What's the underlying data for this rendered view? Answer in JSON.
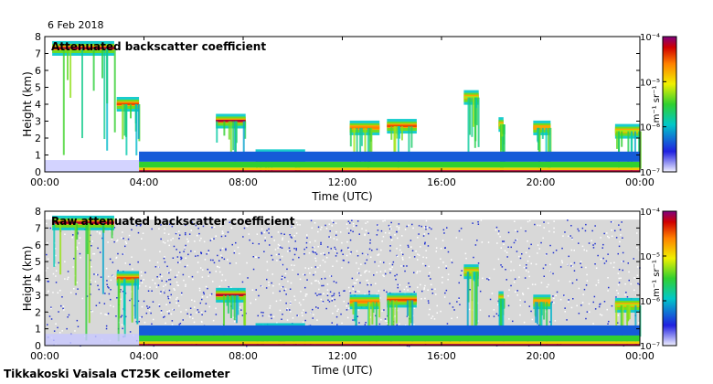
{
  "date_label": "6 Feb 2018",
  "footer": "Tikkakoski Vaisala CT25K ceilometer",
  "colorbar_unit": "m⁻¹ sr⁻¹",
  "chart_data": [
    {
      "type": "heatmap",
      "title": "Attenuated backscatter coefficient",
      "xlabel": "Time (UTC)",
      "ylabel": "Height (km)",
      "xlim_hours": [
        0,
        24
      ],
      "ylim_km": [
        0,
        8
      ],
      "xticks": [
        "00:00",
        "04:00",
        "08:00",
        "12:00",
        "16:00",
        "20:00",
        "00:00"
      ],
      "yticks": [
        0,
        1,
        2,
        3,
        4,
        5,
        6,
        7,
        8
      ],
      "colorbar": {
        "scale": "log",
        "range": [
          1e-07,
          0.0001
        ],
        "ticks": [
          "10⁻⁷",
          "10⁻⁶",
          "10⁻⁵",
          "10⁻⁴"
        ]
      },
      "noise_background": false,
      "features": [
        {
          "kind": "cloud_layer",
          "t_start": 0.3,
          "t_end": 2.8,
          "h_km": 7.3,
          "level": 0.95
        },
        {
          "kind": "cloud_layer",
          "t_start": 2.9,
          "t_end": 3.8,
          "h_km": 4.0,
          "level": 0.85
        },
        {
          "kind": "cloud_layer",
          "t_start": 6.9,
          "t_end": 8.1,
          "h_km": 3.0,
          "level": 0.95
        },
        {
          "kind": "cloud_layer",
          "t_start": 8.5,
          "t_end": 10.5,
          "h_km": 0.9,
          "level": 0.85
        },
        {
          "kind": "cloud_layer",
          "t_start": 12.3,
          "t_end": 13.5,
          "h_km": 2.6,
          "level": 0.8
        },
        {
          "kind": "cloud_layer",
          "t_start": 13.8,
          "t_end": 15.0,
          "h_km": 2.7,
          "level": 0.85
        },
        {
          "kind": "cloud_layer",
          "t_start": 16.9,
          "t_end": 17.5,
          "h_km": 4.4,
          "level": 0.6
        },
        {
          "kind": "cloud_layer",
          "t_start": 18.3,
          "t_end": 18.5,
          "h_km": 2.8,
          "level": 0.6
        },
        {
          "kind": "cloud_layer",
          "t_start": 19.7,
          "t_end": 20.4,
          "h_km": 2.6,
          "level": 0.75
        },
        {
          "kind": "cloud_layer",
          "t_start": 23.0,
          "t_end": 24.0,
          "h_km": 2.4,
          "level": 0.6
        },
        {
          "kind": "boundary_layer",
          "t_start": 3.8,
          "t_end": 24.0,
          "h_km": 0.3,
          "level": 0.95
        }
      ]
    },
    {
      "type": "heatmap",
      "title": "Raw attenuated backscatter coefficient",
      "xlabel": "Time (UTC)",
      "ylabel": "Height (km)",
      "xlim_hours": [
        0,
        24
      ],
      "ylim_km": [
        0,
        8
      ],
      "xticks": [
        "00:00",
        "04:00",
        "08:00",
        "12:00",
        "16:00",
        "20:00",
        "00:00"
      ],
      "yticks": [
        0,
        1,
        2,
        3,
        4,
        5,
        6,
        7,
        8
      ],
      "colorbar": {
        "scale": "log",
        "range": [
          1e-07,
          0.0001
        ],
        "ticks": [
          "10⁻⁷",
          "10⁻⁶",
          "10⁻⁵",
          "10⁻⁴"
        ]
      },
      "noise_background": true,
      "features": [
        {
          "kind": "cloud_layer",
          "t_start": 0.3,
          "t_end": 2.8,
          "h_km": 7.3,
          "level": 0.95
        },
        {
          "kind": "cloud_layer",
          "t_start": 2.9,
          "t_end": 3.8,
          "h_km": 4.0,
          "level": 0.85
        },
        {
          "kind": "cloud_layer",
          "t_start": 6.9,
          "t_end": 8.1,
          "h_km": 3.0,
          "level": 0.95
        },
        {
          "kind": "cloud_layer",
          "t_start": 8.5,
          "t_end": 10.5,
          "h_km": 0.9,
          "level": 0.85
        },
        {
          "kind": "cloud_layer",
          "t_start": 12.3,
          "t_end": 13.5,
          "h_km": 2.6,
          "level": 0.8
        },
        {
          "kind": "cloud_layer",
          "t_start": 13.8,
          "t_end": 15.0,
          "h_km": 2.7,
          "level": 0.85
        },
        {
          "kind": "cloud_layer",
          "t_start": 16.9,
          "t_end": 17.5,
          "h_km": 4.4,
          "level": 0.6
        },
        {
          "kind": "cloud_layer",
          "t_start": 18.3,
          "t_end": 18.5,
          "h_km": 2.8,
          "level": 0.6
        },
        {
          "kind": "cloud_layer",
          "t_start": 19.7,
          "t_end": 20.4,
          "h_km": 2.6,
          "level": 0.75
        },
        {
          "kind": "cloud_layer",
          "t_start": 23.0,
          "t_end": 24.0,
          "h_km": 2.4,
          "level": 0.6
        },
        {
          "kind": "boundary_layer",
          "t_start": 3.8,
          "t_end": 24.0,
          "h_km": 0.3,
          "level": 0.95
        }
      ]
    }
  ]
}
